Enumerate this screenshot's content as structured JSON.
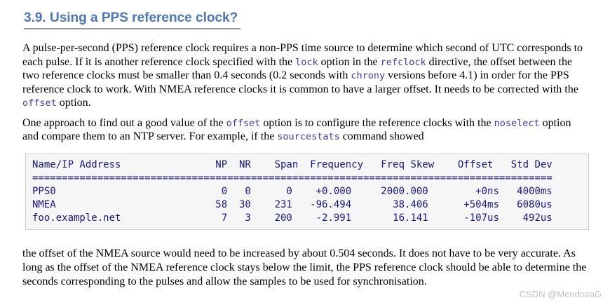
{
  "heading": {
    "text": "3.9. Using a PPS reference clock?"
  },
  "paragraphs": [
    {
      "segments": [
        {
          "text": "A pulse-per-second (PPS) reference clock requires a non-PPS time source to determine which second of UTC corresponds to each pulse. If it is another reference clock specified with the ",
          "code": false
        },
        {
          "text": "lock",
          "code": true
        },
        {
          "text": " option in the ",
          "code": false
        },
        {
          "text": "refclock",
          "code": true
        },
        {
          "text": " directive, the offset between the two reference clocks must be smaller than 0.4 seconds (0.2 seconds with ",
          "code": false
        },
        {
          "text": "chrony",
          "code": true
        },
        {
          "text": " versions before 4.1) in order for the PPS reference clock to work. With NMEA reference clocks it is common to have a larger offset. It needs to be corrected with the ",
          "code": false
        },
        {
          "text": "offset",
          "code": true
        },
        {
          "text": " option.",
          "code": false
        }
      ]
    },
    {
      "segments": [
        {
          "text": "One approach to find out a good value of the ",
          "code": false
        },
        {
          "text": "offset",
          "code": true
        },
        {
          "text": " option is to configure the reference clocks with the ",
          "code": false
        },
        {
          "text": "noselect",
          "code": true
        },
        {
          "text": " option and compare them to an NTP server. For example, if the ",
          "code": false
        },
        {
          "text": "sourcestats",
          "code": true
        },
        {
          "text": " command showed",
          "code": false
        }
      ]
    },
    {
      "segments": [
        {
          "text": "the offset of the NMEA source would need to be increased by about 0.504 seconds. It does not have to be very accurate. As long as the offset of the NMEA reference clock stays below the limit, the PPS reference clock should be able to determine the seconds corresponding to the pulses and allow the samples to be used for synchronisation.",
          "code": false
        }
      ]
    }
  ],
  "code_block": {
    "lines": [
      "Name/IP Address                NP  NR    Span  Frequency   Freq Skew    Offset   Std Dev",
      "========================================================================================",
      "PPS0                            0   0      0    +0.000     2000.000        +0ns   4000ms",
      "NMEA                           58  30    231   -96.494       38.406      +504ms   6080us",
      "foo.example.net                 7   3    200    -2.991       16.141      -107us    492us"
    ],
    "columns": [
      "Name/IP Address",
      "NP",
      "NR",
      "Span",
      "Frequency",
      "Freq Skew",
      "Offset",
      "Std Dev"
    ],
    "rows": [
      {
        "name": "PPS0",
        "np": "0",
        "nr": "0",
        "span": "0",
        "frequency": "+0.000",
        "freq_skew": "2000.000",
        "offset": "+0ns",
        "std_dev": "4000ms"
      },
      {
        "name": "NMEA",
        "np": "58",
        "nr": "30",
        "span": "231",
        "frequency": "-96.494",
        "freq_skew": "38.406",
        "offset": "+504ms",
        "std_dev": "6080us"
      },
      {
        "name": "foo.example.net",
        "np": "7",
        "nr": "3",
        "span": "200",
        "frequency": "-2.991",
        "freq_skew": "16.141",
        "offset": "-107us",
        "std_dev": "492us"
      }
    ]
  },
  "watermark": {
    "text": "CSDN @MendozaG"
  },
  "colors": {
    "heading": "#4a77ba",
    "heading_underline": "#999999",
    "body_text": "#000000",
    "inline_code": "#3b3bb8",
    "pre_text": "#16168e",
    "pre_bg": "#f6f6f6",
    "pre_border": "#cccccc",
    "watermark": "#c2c2c6"
  }
}
